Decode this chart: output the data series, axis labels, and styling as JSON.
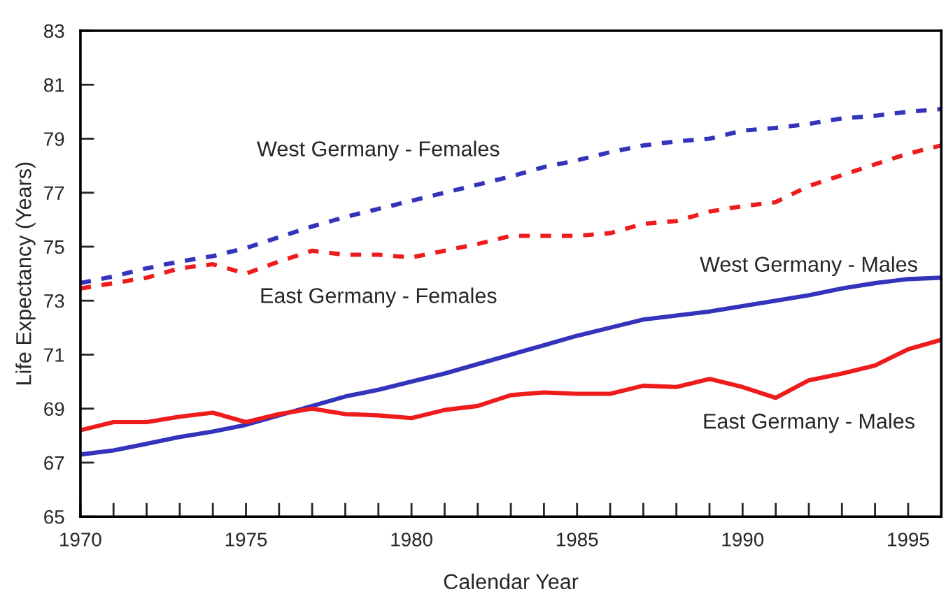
{
  "chart_data": {
    "type": "line",
    "xlabel": "Calendar Year",
    "ylabel": "Life Expectancy (Years)",
    "x": [
      1970,
      1971,
      1972,
      1973,
      1974,
      1975,
      1976,
      1977,
      1978,
      1979,
      1980,
      1981,
      1982,
      1983,
      1984,
      1985,
      1986,
      1987,
      1988,
      1989,
      1990,
      1991,
      1992,
      1993,
      1994,
      1995,
      1996
    ],
    "series": [
      {
        "name": "West Germany - Females",
        "color": "#3333bb",
        "line_style": "dashed",
        "values": [
          73.65,
          73.9,
          74.2,
          74.45,
          74.65,
          74.95,
          75.35,
          75.75,
          76.1,
          76.4,
          76.7,
          77.0,
          77.3,
          77.6,
          77.95,
          78.2,
          78.5,
          78.75,
          78.9,
          79.0,
          79.3,
          79.4,
          79.55,
          79.75,
          79.85,
          80.0,
          80.1
        ]
      },
      {
        "name": "East Germany - Females",
        "color": "#ee1c1c",
        "line_style": "dashed",
        "values": [
          73.45,
          73.65,
          73.85,
          74.2,
          74.35,
          74.0,
          74.45,
          74.85,
          74.7,
          74.7,
          74.6,
          74.85,
          75.1,
          75.4,
          75.4,
          75.4,
          75.5,
          75.85,
          75.95,
          76.3,
          76.5,
          76.65,
          77.25,
          77.65,
          78.05,
          78.45,
          78.75
        ]
      },
      {
        "name": "West Germany - Males",
        "color": "#3333bb",
        "line_style": "solid",
        "values": [
          67.3,
          67.45,
          67.7,
          67.95,
          68.15,
          68.4,
          68.75,
          69.1,
          69.45,
          69.7,
          70.0,
          70.3,
          70.65,
          71.0,
          71.35,
          71.7,
          72.0,
          72.3,
          72.45,
          72.6,
          72.8,
          73.0,
          73.2,
          73.45,
          73.65,
          73.8,
          73.85
        ]
      },
      {
        "name": "East Germany - Males",
        "color": "#ee1c1c",
        "line_style": "solid",
        "values": [
          68.2,
          68.5,
          68.5,
          68.7,
          68.85,
          68.5,
          68.8,
          69.0,
          68.8,
          68.75,
          68.65,
          68.95,
          69.1,
          69.5,
          69.6,
          69.55,
          69.55,
          69.85,
          69.8,
          70.1,
          69.8,
          69.4,
          70.05,
          70.3,
          70.6,
          71.2,
          71.55
        ]
      }
    ],
    "xlim": [
      1970,
      1996
    ],
    "xticks": [
      1970,
      {
        "value": 1971,
        "label": null
      },
      {
        "value": 1972,
        "label": null
      },
      {
        "value": 1973,
        "label": null
      },
      {
        "value": 1974,
        "label": null
      },
      1975,
      {
        "value": 1976,
        "label": null
      },
      {
        "value": 1977,
        "label": null
      },
      {
        "value": 1978,
        "label": null
      },
      {
        "value": 1979,
        "label": null
      },
      1980,
      {
        "value": 1981,
        "label": null
      },
      {
        "value": 1982,
        "label": null
      },
      {
        "value": 1983,
        "label": null
      },
      {
        "value": 1984,
        "label": null
      },
      1985,
      {
        "value": 1986,
        "label": null
      },
      {
        "value": 1987,
        "label": null
      },
      {
        "value": 1988,
        "label": null
      },
      {
        "value": 1989,
        "label": null
      },
      1990,
      {
        "value": 1991,
        "label": null
      },
      {
        "value": 1992,
        "label": null
      },
      {
        "value": 1993,
        "label": null
      },
      {
        "value": 1994,
        "label": null
      },
      1995,
      {
        "value": 1996,
        "label": null
      }
    ],
    "ylim": [
      65,
      83
    ],
    "yticks": [
      65,
      67,
      69,
      71,
      73,
      75,
      77,
      79,
      81,
      83
    ],
    "grid": false,
    "legend": false,
    "marker": "none"
  }
}
